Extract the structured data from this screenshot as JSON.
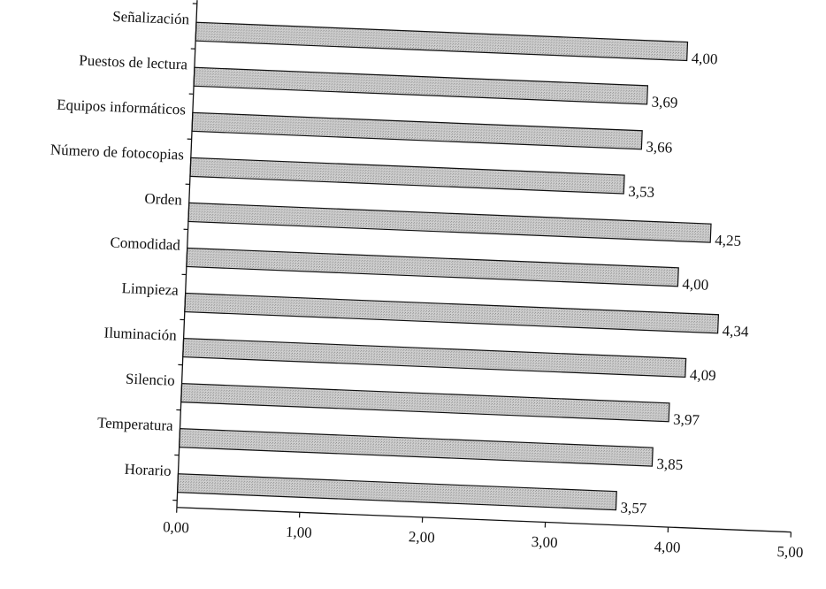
{
  "chart_data": {
    "type": "bar",
    "orientation": "horizontal",
    "title": "",
    "xlabel": "",
    "ylabel": "",
    "categories": [
      "Señalización",
      "Puestos de lectura",
      "Equipos informáticos",
      "Número de fotocopias",
      "Orden",
      "Comodidad",
      "Limpieza",
      "Iluminación",
      "Silencio",
      "Temperatura",
      "Horario"
    ],
    "values": [
      4.0,
      3.69,
      3.66,
      3.53,
      4.25,
      4.0,
      4.34,
      4.09,
      3.97,
      3.85,
      3.57
    ],
    "value_labels": [
      "4,00",
      "3,69",
      "3,66",
      "3,53",
      "4,25",
      "4,00",
      "4,34",
      "4,09",
      "3,97",
      "3,85",
      "3,57"
    ],
    "xlim": [
      0,
      5
    ],
    "x_ticks": [
      0,
      1,
      2,
      3,
      4,
      5
    ],
    "x_tick_labels": [
      "0,00",
      "1,00",
      "2,00",
      "3,00",
      "4,00",
      "5,00"
    ],
    "grid": false,
    "legend": "none",
    "bar_fill": "#c8c8c8",
    "bar_stroke": "#111111"
  }
}
